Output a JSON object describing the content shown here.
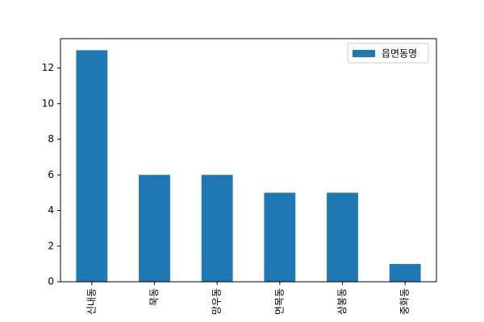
{
  "chart_data": {
    "type": "bar",
    "title": "",
    "xlabel": "",
    "ylabel": "",
    "categories": [
      "신내동",
      "묵동",
      "망우동",
      "면목동",
      "상봉동",
      "중화동"
    ],
    "series": [
      {
        "name": "읍면동명",
        "values": [
          13,
          6,
          6,
          5,
          5,
          1
        ],
        "color": "#1f77b4"
      }
    ],
    "ylim": [
      0,
      13.65
    ],
    "yticks": [
      0,
      2,
      4,
      6,
      8,
      10,
      12
    ],
    "grid": false,
    "legend_position": "top-right",
    "x_tick_rotation": "vertical"
  }
}
